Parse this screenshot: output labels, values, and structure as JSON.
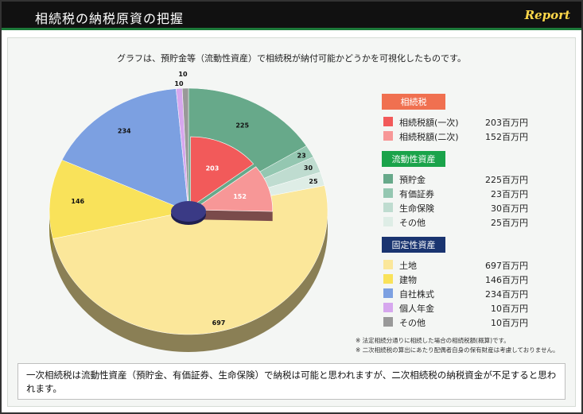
{
  "header": {
    "title": "相続税の納税原資の把握",
    "logo": "Report"
  },
  "subtitle": "グラフは、預貯金等（流動性資産）で相続税が納付可能かどうかを可視化したものです。",
  "chart_data": {
    "type": "pie",
    "title": "相続税の納税原資の把握",
    "unit": "百万円",
    "inner_ring": {
      "name": "相続税",
      "slices": [
        {
          "label": "相続税額(一次)",
          "value": 203,
          "color": "#f25a5a"
        },
        {
          "label": "相続税額(二次)",
          "value": 152,
          "color": "#f79797"
        }
      ]
    },
    "outer_ring": {
      "slices": [
        {
          "label": "預貯金",
          "group": "流動性資産",
          "value": 225,
          "color": "#67a98a"
        },
        {
          "label": "有価証券",
          "group": "流動性資産",
          "value": 23,
          "color": "#94c7b1"
        },
        {
          "label": "生命保険",
          "group": "流動性資産",
          "value": 30,
          "color": "#bfdcd0"
        },
        {
          "label": "その他",
          "group": "流動性資産",
          "value": 25,
          "color": "#deede6"
        },
        {
          "label": "土地",
          "group": "固定性資産",
          "value": 697,
          "color": "#fbe79a"
        },
        {
          "label": "建物",
          "group": "固定性資産",
          "value": 146,
          "color": "#f9e25a"
        },
        {
          "label": "自社株式",
          "group": "固定性資産",
          "value": 234,
          "color": "#7ca0e1"
        },
        {
          "label": "個人年金",
          "group": "固定性資産",
          "value": 10,
          "color": "#d6a7ee"
        },
        {
          "label": "その他",
          "group": "固定性資産",
          "value": 10,
          "color": "#999999"
        }
      ]
    }
  },
  "legend": {
    "groups": [
      {
        "title": "相続税",
        "color": "#f07050",
        "items": [
          {
            "label": "相続税額(一次)",
            "value": "203百万円",
            "color": "#f25a5a"
          },
          {
            "label": "相続税額(二次)",
            "value": "152百万円",
            "color": "#f79797"
          }
        ]
      },
      {
        "title": "流動性資産",
        "color": "#1aa34a",
        "items": [
          {
            "label": "預貯金",
            "value": "225百万円",
            "color": "#67a98a"
          },
          {
            "label": "有価証券",
            "value": "23百万円",
            "color": "#94c7b1"
          },
          {
            "label": "生命保険",
            "value": "30百万円",
            "color": "#bfdcd0"
          },
          {
            "label": "その他",
            "value": "25百万円",
            "color": "#deede6"
          }
        ]
      },
      {
        "title": "固定性資産",
        "color": "#1a3470",
        "items": [
          {
            "label": "土地",
            "value": "697百万円",
            "color": "#fbe79a"
          },
          {
            "label": "建物",
            "value": "146百万円",
            "color": "#f9e25a"
          },
          {
            "label": "自社株式",
            "value": "234百万円",
            "color": "#7ca0e1"
          },
          {
            "label": "個人年金",
            "value": "10百万円",
            "color": "#d6a7ee"
          },
          {
            "label": "その他",
            "value": "10百万円",
            "color": "#999999"
          }
        ]
      }
    ]
  },
  "notes": [
    "※ 法定相続分通りに相続した場合の相続税額(概算)です。",
    "※ 二次相続税の算出にあたり配偶者自身の保有財産は考慮しておりません。"
  ],
  "conclusion": "一次相続税は流動性資産（預貯金、有価証券、生命保険）で納税は可能と思われますが、二次相続税の納税資金が不足すると思われます。"
}
